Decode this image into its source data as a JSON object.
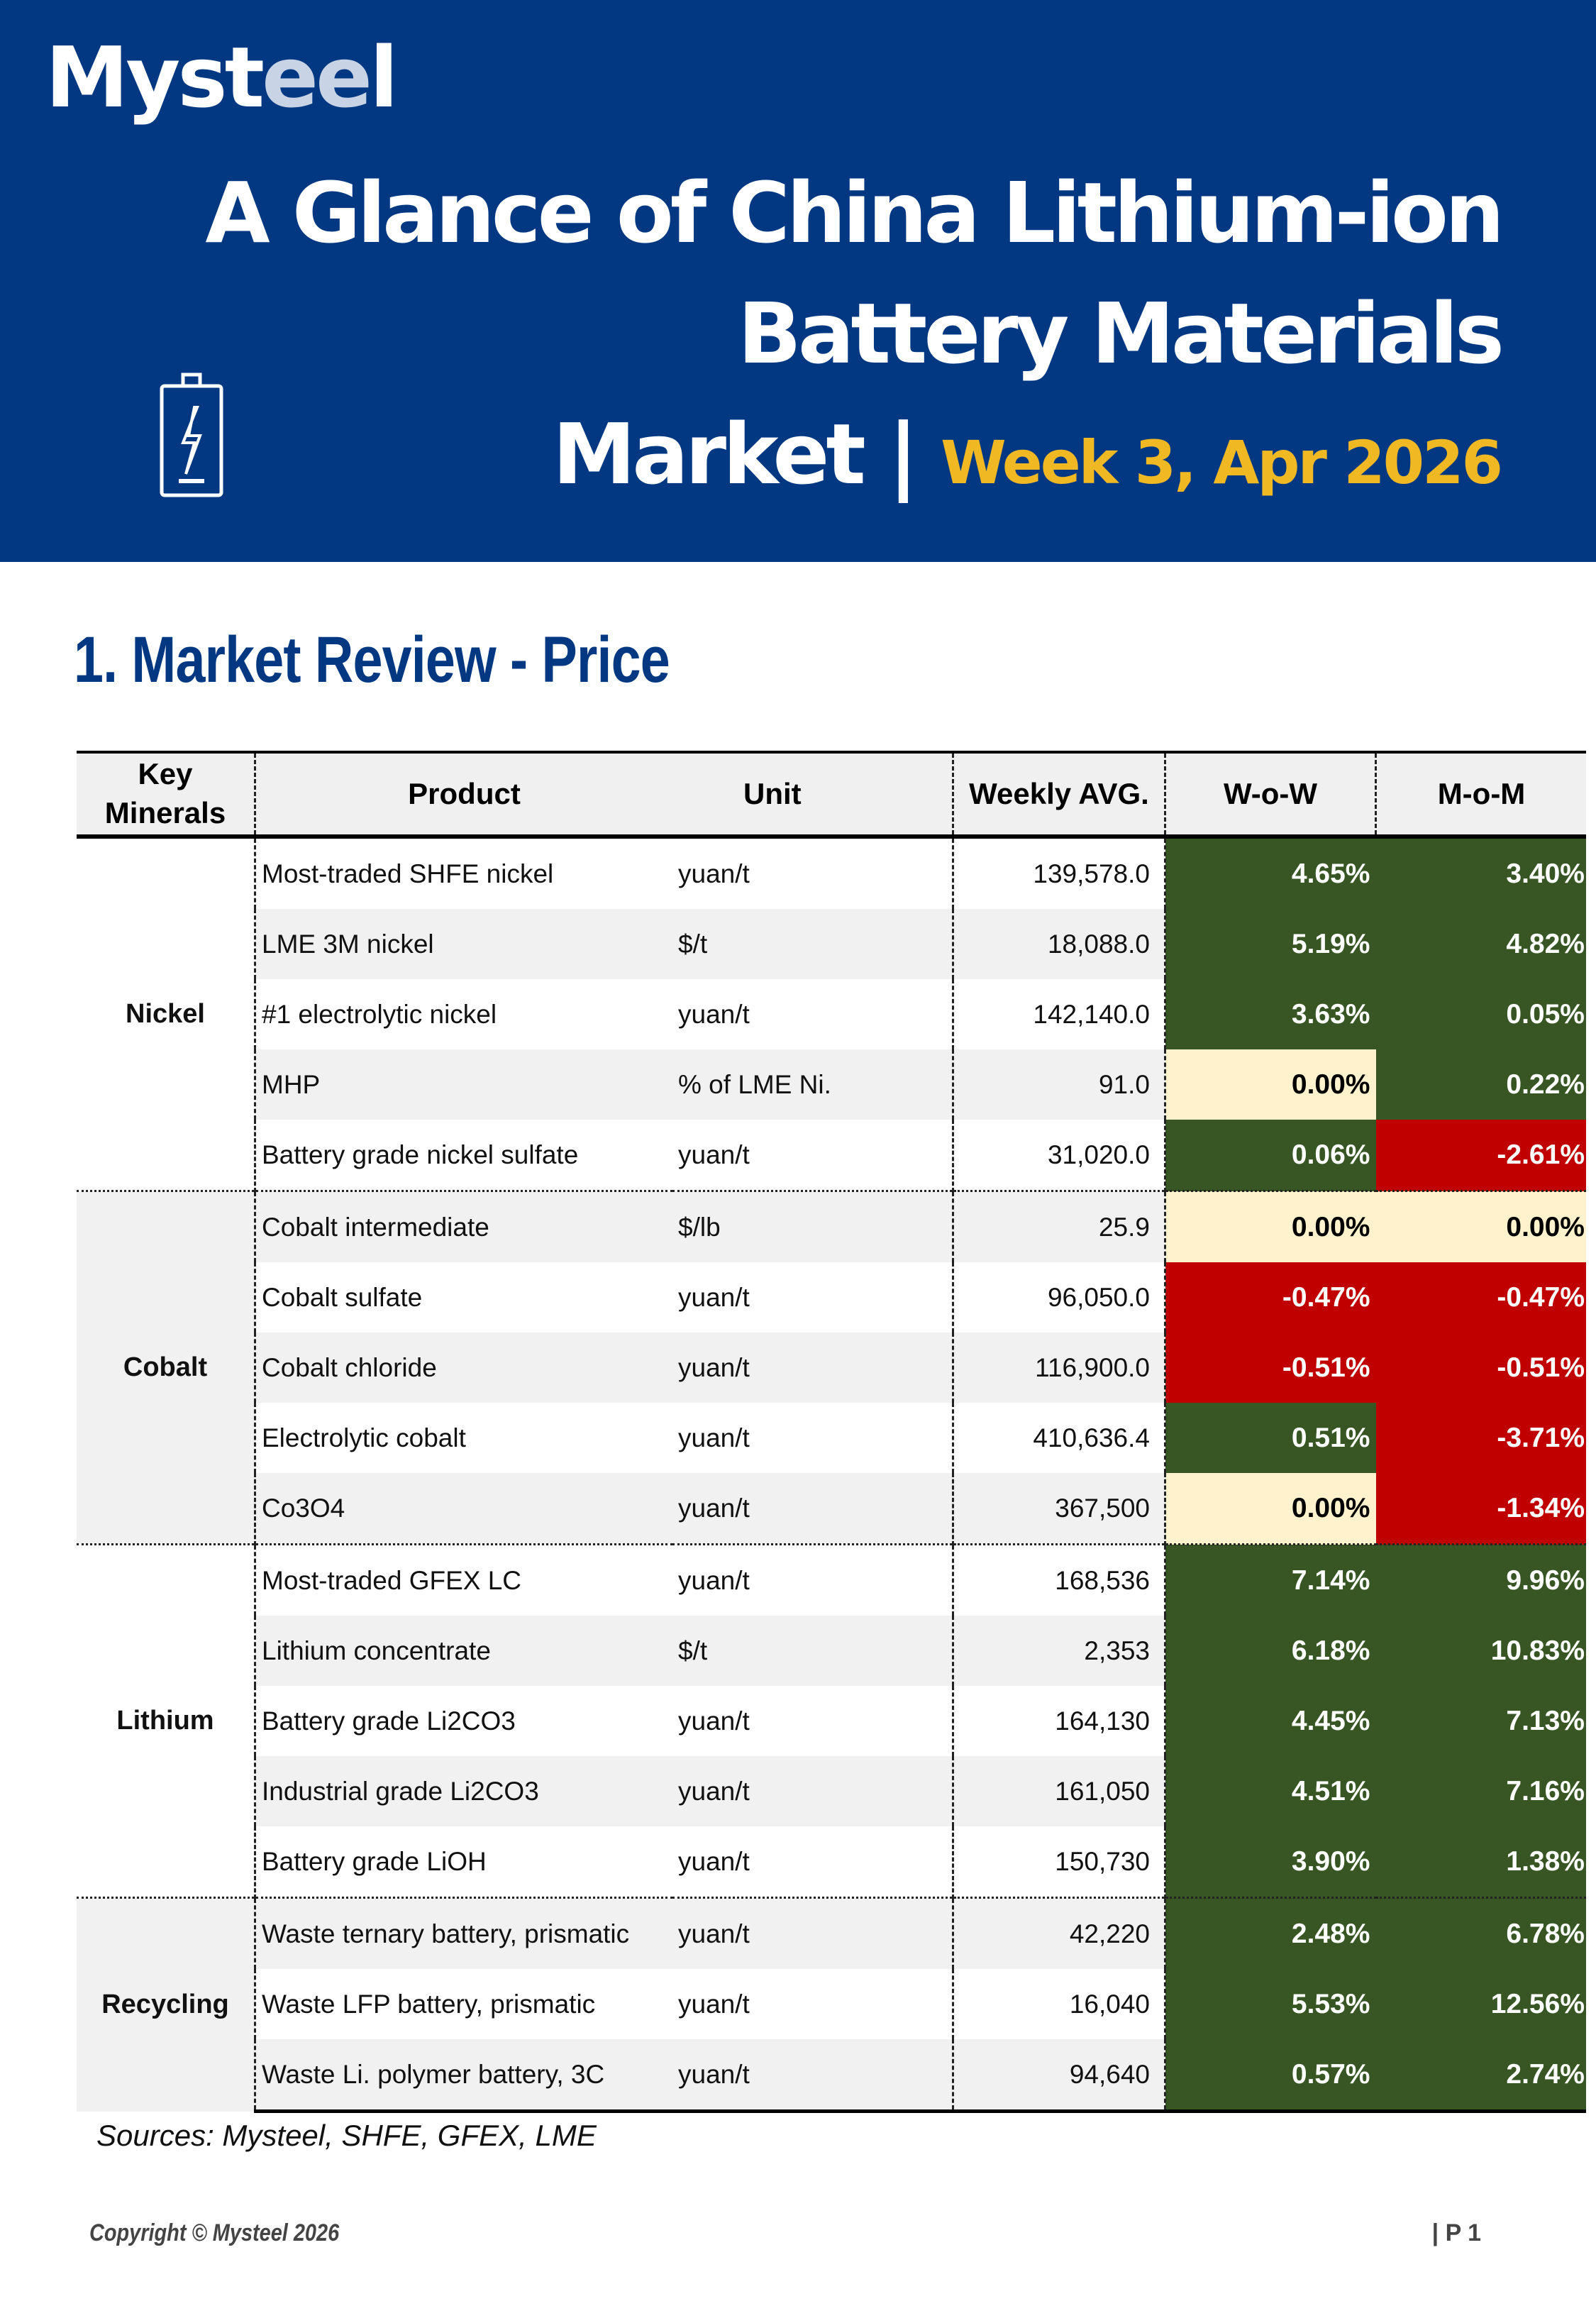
{
  "header": {
    "logo_text_1": "Myst",
    "logo_text_2": "ee",
    "logo_text_3": "l",
    "title_line1": "A Glance of China Lithium-ion",
    "title_line2": "Battery Materials",
    "title_line3": "Market | ",
    "week_label": "Week 3, Apr 2026",
    "icon": "battery-charging-icon",
    "colors": {
      "band": "#023882",
      "accent": "#f0b823"
    }
  },
  "section": {
    "title": "1. Market Review - Price"
  },
  "table": {
    "headers": {
      "key": "Key Minerals",
      "product": "Product",
      "unit": "Unit",
      "avg": "Weekly AVG.",
      "wow": "W-o-W",
      "mom": "M-o-M"
    },
    "groups": [
      {
        "name": "Nickel",
        "rows": [
          {
            "product": "Most-traded SHFE nickel",
            "unit": "yuan/t",
            "avg": "139,578.0",
            "wow": "4.65%",
            "mom": "3.40%"
          },
          {
            "product": "LME 3M nickel",
            "unit": "$/t",
            "avg": "18,088.0",
            "wow": "5.19%",
            "mom": "4.82%"
          },
          {
            "product": "#1 electrolytic nickel",
            "unit": "yuan/t",
            "avg": "142,140.0",
            "wow": "3.63%",
            "mom": "0.05%"
          },
          {
            "product": "MHP",
            "unit": "% of LME Ni.",
            "avg": "91.0",
            "wow": "0.00%",
            "mom": "0.22%"
          },
          {
            "product": "Battery grade nickel sulfate",
            "unit": "yuan/t",
            "avg": "31,020.0",
            "wow": "0.06%",
            "mom": "-2.61%"
          }
        ]
      },
      {
        "name": "Cobalt",
        "rows": [
          {
            "product": "Cobalt intermediate",
            "unit": "$/lb",
            "avg": "25.9",
            "wow": "0.00%",
            "mom": "0.00%"
          },
          {
            "product": "Cobalt sulfate",
            "unit": "yuan/t",
            "avg": "96,050.0",
            "wow": "-0.47%",
            "mom": "-0.47%"
          },
          {
            "product": "Cobalt chloride",
            "unit": "yuan/t",
            "avg": "116,900.0",
            "wow": "-0.51%",
            "mom": "-0.51%"
          },
          {
            "product": "Electrolytic cobalt",
            "unit": "yuan/t",
            "avg": "410,636.4",
            "wow": "0.51%",
            "mom": "-3.71%"
          },
          {
            "product": "Co3O4",
            "unit": "yuan/t",
            "avg": "367,500",
            "wow": "0.00%",
            "mom": "-1.34%"
          }
        ]
      },
      {
        "name": "Lithium",
        "rows": [
          {
            "product": "Most-traded GFEX LC",
            "unit": "yuan/t",
            "avg": "168,536",
            "wow": "7.14%",
            "mom": "9.96%"
          },
          {
            "product": "Lithium concentrate",
            "unit": "$/t",
            "avg": "2,353",
            "wow": "6.18%",
            "mom": "10.83%"
          },
          {
            "product": "Battery grade Li2CO3",
            "unit": "yuan/t",
            "avg": "164,130",
            "wow": "4.45%",
            "mom": "7.13%"
          },
          {
            "product": "Industrial grade Li2CO3",
            "unit": "yuan/t",
            "avg": "161,050",
            "wow": "4.51%",
            "mom": "7.16%"
          },
          {
            "product": "Battery grade LiOH",
            "unit": "yuan/t",
            "avg": "150,730",
            "wow": "3.90%",
            "mom": "1.38%"
          }
        ]
      },
      {
        "name": "Recycling",
        "rows": [
          {
            "product": "Waste ternary battery, prismatic",
            "unit": "yuan/t",
            "avg": "42,220",
            "wow": "2.48%",
            "mom": "6.78%"
          },
          {
            "product": "Waste LFP battery, prismatic",
            "unit": "yuan/t",
            "avg": "16,040",
            "wow": "5.53%",
            "mom": "12.56%"
          },
          {
            "product": "Waste Li. polymer battery, 3C",
            "unit": "yuan/t",
            "avg": "94,640",
            "wow": "0.57%",
            "mom": "2.74%"
          }
        ]
      }
    ],
    "colors": {
      "positive": "#375623",
      "negative": "#c00000",
      "zero": "#fff2cc"
    }
  },
  "sources": "Sources: Mysteel, SHFE, GFEX, LME",
  "footer": {
    "copyright": "Copyright © Mysteel 2026",
    "page": "| P 1"
  }
}
